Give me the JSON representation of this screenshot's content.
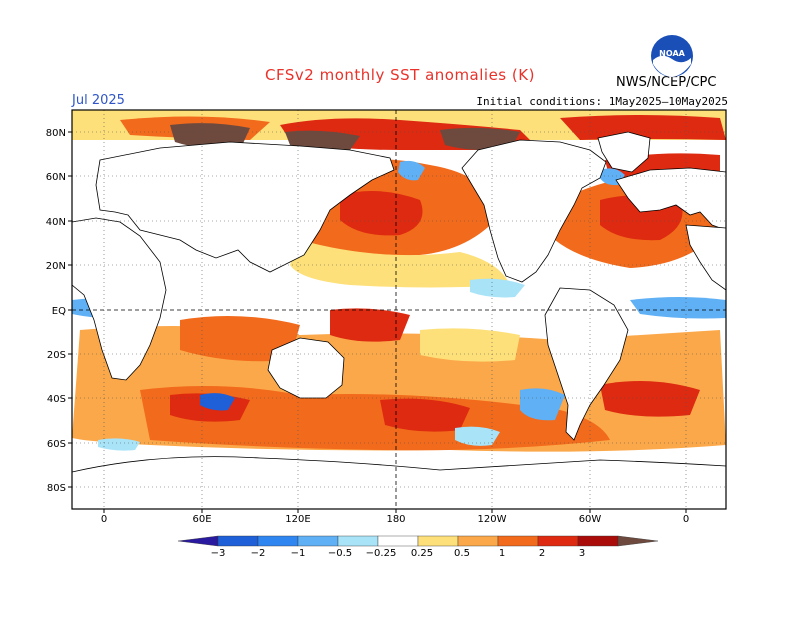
{
  "title": "CFSv2 monthly SST anomalies (K)",
  "month": "Jul 2025",
  "initial_conditions": "Initial conditions: 1May2025–10May2025",
  "agency": "NWS/NCEP/CPC",
  "logo_text": "NOAA",
  "lat_labels": [
    "80N",
    "60N",
    "40N",
    "20N",
    "EQ",
    "20S",
    "40S",
    "60S",
    "80S"
  ],
  "lon_labels": [
    "0",
    "60E",
    "120E",
    "180",
    "120W",
    "60W",
    "0"
  ],
  "colorbar": {
    "ticks": [
      "−3",
      "−2",
      "−1",
      "−0.5",
      "−0.25",
      "0.25",
      "0.5",
      "1",
      "2",
      "3"
    ],
    "colors": [
      "#2a1aa0",
      "#1f5fd8",
      "#2f86f0",
      "#5fb0f5",
      "#a8e3f8",
      "#ffffff",
      "#fde07a",
      "#fba84a",
      "#f26a1b",
      "#dd2a10",
      "#aa0c0a",
      "#6e4a3e"
    ]
  },
  "colors": {
    "title": "#e8322a",
    "month": "#2f55c8"
  }
}
